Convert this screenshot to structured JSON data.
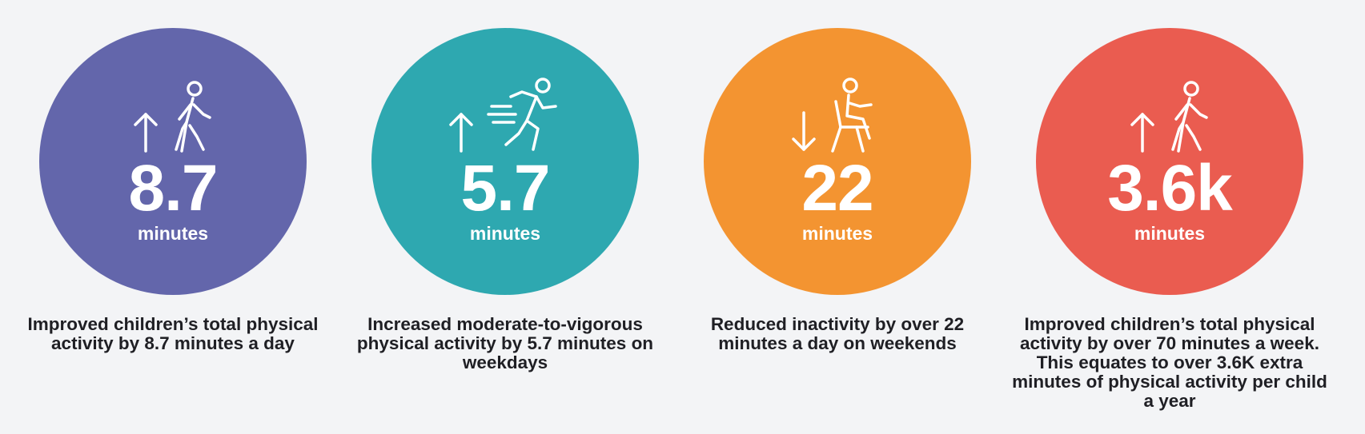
{
  "stats": [
    {
      "value": "8.7",
      "unit": "minutes",
      "direction": "up",
      "icon": "walking-person-icon",
      "color": "#6366ab",
      "description": "Improved children’s total physical activity by 8.7 minutes a day"
    },
    {
      "value": "5.7",
      "unit": "minutes",
      "direction": "up",
      "icon": "running-person-icon",
      "color": "#2ea8b0",
      "description": "Increased moderate-to-vigorous physical activity by 5.7 minutes on weekdays"
    },
    {
      "value": "22",
      "unit": "minutes",
      "direction": "down",
      "icon": "seated-person-icon",
      "color": "#f39431",
      "description": "Reduced inactivity by over 22 minutes a day on weekends"
    },
    {
      "value": "3.6k",
      "unit": "minutes",
      "direction": "up",
      "icon": "walking-person-icon",
      "color": "#ea5c50",
      "description": "Improved children’s total physical activity by over 70 minutes a week. This equates to over 3.6K extra minutes of physical activity per child a year"
    }
  ]
}
